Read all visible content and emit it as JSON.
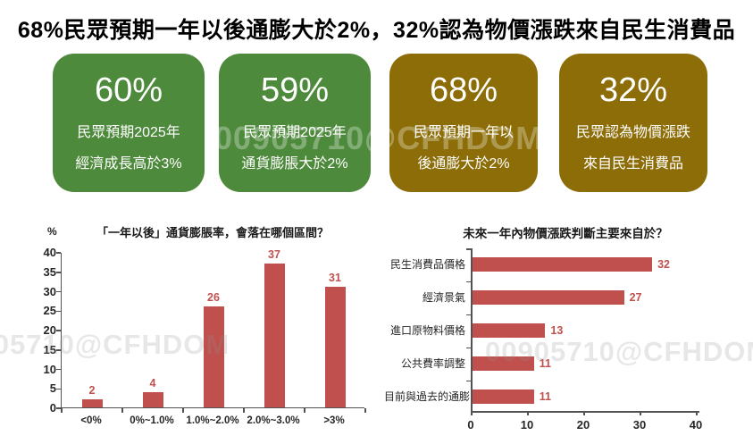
{
  "title": "68%民眾預期一年以後通膨大於2%，32%認為物價漲跌來自民生消費品",
  "watermark": "00905710@CFHDOM",
  "colors": {
    "card_green": "#4E8A3C",
    "card_gold": "#8C6D07",
    "bar_red": "#C0504D",
    "value_red": "#C0504D"
  },
  "cards": [
    {
      "value": "60%",
      "line1": "民眾預期2025年",
      "line2": "經濟成長高於3%",
      "color": "#4E8A3C"
    },
    {
      "value": "59%",
      "line1": "民眾預期2025年",
      "line2": "通貨膨脹大於2%",
      "color": "#4E8A3C"
    },
    {
      "value": "68%",
      "line1": "民眾預期一年以",
      "line2": "後通膨大於2%",
      "color": "#8C6D07"
    },
    {
      "value": "32%",
      "line1": "民眾認為物價漲跌",
      "line2": "來自民生消費品",
      "color": "#8C6D07"
    }
  ],
  "chart_data": [
    {
      "type": "bar",
      "orientation": "vertical",
      "title": "「一年以後」通貨膨脹率，會落在哪個區間？",
      "ylabel": "%",
      "categories": [
        "<0%",
        "0%~1.0%",
        "1.0%~2.0%",
        "2.0%~3.0%",
        ">3%"
      ],
      "values": [
        2,
        4,
        26,
        37,
        31
      ],
      "ylim": [
        0,
        40
      ],
      "yticks": [
        0,
        5,
        10,
        15,
        20,
        25,
        30,
        35,
        40
      ],
      "bar_color": "#C0504D",
      "grid": false,
      "data_labels": true
    },
    {
      "type": "bar",
      "orientation": "horizontal",
      "title": "未來一年內物價漲跌判斷主要來自於？",
      "categories": [
        "民生消費品價格",
        "經濟景氣",
        "進口原物料價格",
        "公共費率調整",
        "目前與過去的通膨"
      ],
      "values": [
        32,
        27,
        13,
        11,
        11
      ],
      "xlim": [
        0,
        40
      ],
      "xticks": [
        0,
        10,
        20,
        30,
        40
      ],
      "bar_color": "#C0504D",
      "grid": false,
      "data_labels": true
    }
  ]
}
